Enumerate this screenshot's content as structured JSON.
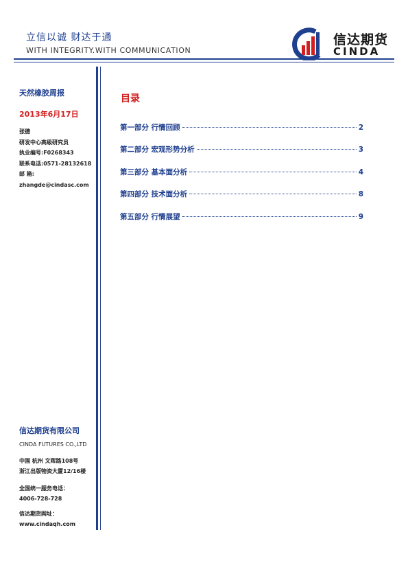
{
  "header": {
    "slogan_cn": "立信以诚  财达于通",
    "slogan_en": "WITH INTEGRITY.WITH COMMUNICATION",
    "logo_cn": "信达期货",
    "logo_en": "CINDA",
    "colors": {
      "brand_blue": "#1f3f8f",
      "brand_red": "#d21f1f"
    }
  },
  "sidebar": {
    "report_title": "天然橡胶周报",
    "date": "2013年6月17日",
    "author": "张德",
    "position": "研发中心高级研究员",
    "license": "执业编号:F0268343",
    "phone": "联系电话:0571-28132618",
    "email_label": "邮      箱:",
    "email": "zhangde@cindasc.com"
  },
  "footer": {
    "company_cn": "信达期货有限公司",
    "company_en": "CINDA FUTURES CO.,LTD",
    "address_line1": "中国  杭州  文晖路108号",
    "address_line2": "浙江出版物资大厦12/16楼",
    "service_label": "全国统一服务电话：",
    "service_phone": "4006-728-728",
    "website_label": "信达期货网址：",
    "website": "www.cindaqh.com"
  },
  "toc": {
    "title": "目录",
    "items": [
      {
        "label": "第一部分  行情回顾",
        "page": "2"
      },
      {
        "label": "第二部分  宏观形势分析",
        "page": "3"
      },
      {
        "label": "第三部分  基本面分析",
        "page": "4"
      },
      {
        "label": "第四部分  技术面分析",
        "page": "8"
      },
      {
        "label": "第五部分  行情展望",
        "page": "9"
      }
    ]
  }
}
